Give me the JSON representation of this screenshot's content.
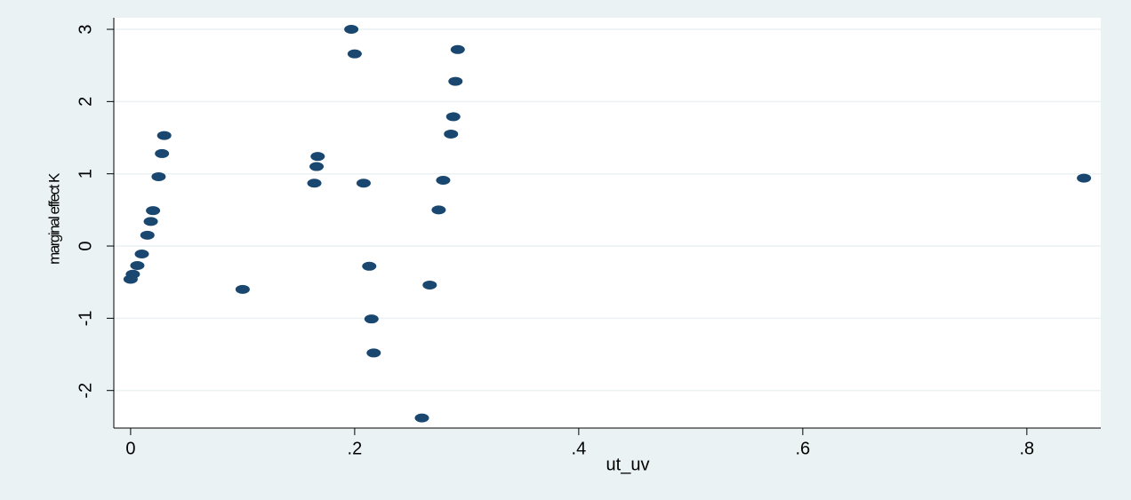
{
  "chart_data": {
    "type": "scatter",
    "x_label": "ut_uv",
    "y_label": "marginal effect K",
    "xlim": [
      -0.015,
      0.866
    ],
    "ylim": [
      -2.52,
      3.16
    ],
    "xticks": [
      0,
      {
        "value": 0.2,
        "label": ".2"
      },
      {
        "value": 0.4,
        "label": ".4"
      },
      {
        "value": 0.6,
        "label": ".6"
      },
      {
        "value": 0.8,
        "label": ".8"
      }
    ],
    "yticks": [
      -2,
      -1,
      0,
      1,
      2,
      3
    ],
    "grid": true,
    "color": "#1a476f",
    "x": [
      0.0,
      0.002,
      0.006,
      0.01,
      0.015,
      0.018,
      0.02,
      0.025,
      0.028,
      0.03,
      0.1,
      0.164,
      0.166,
      0.167,
      0.197,
      0.2,
      0.208,
      0.213,
      0.215,
      0.217,
      0.26,
      0.267,
      0.275,
      0.279,
      0.286,
      0.288,
      0.29,
      0.292,
      0.851
    ],
    "values": [
      -0.46,
      -0.39,
      -0.27,
      -0.11,
      0.15,
      0.34,
      0.49,
      0.96,
      1.28,
      1.53,
      -0.6,
      0.87,
      1.1,
      1.24,
      3.0,
      2.66,
      0.87,
      -0.28,
      -1.01,
      -1.48,
      -2.38,
      -0.54,
      0.5,
      0.91,
      1.55,
      1.79,
      2.28,
      2.72,
      0.94
    ]
  }
}
